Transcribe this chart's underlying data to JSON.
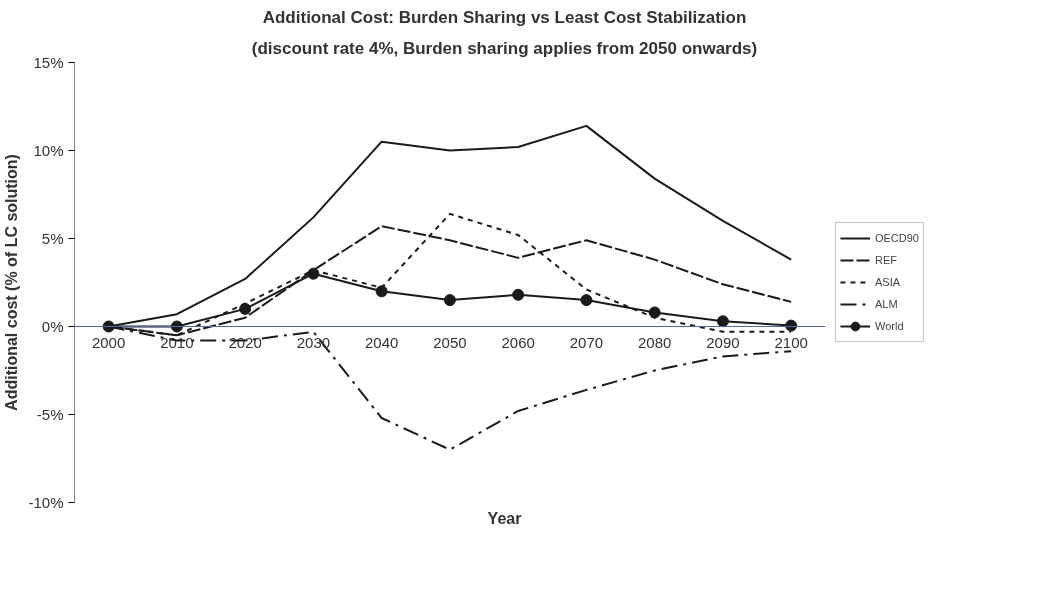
{
  "chart_data": {
    "type": "line",
    "title": "Additional Cost: Burden Sharing vs Least Cost Stabilization",
    "subtitle": "(discount rate 4%, Burden sharing applies from 2050 onwards)",
    "xlabel": "Year",
    "ylabel": "Additional cost (% of LC solution)",
    "categories": [
      "2000",
      "2010",
      "2020",
      "2030",
      "2040",
      "2050",
      "2060",
      "2070",
      "2080",
      "2090",
      "2100"
    ],
    "ylim": [
      -10,
      15
    ],
    "yticks": [
      {
        "value": -10,
        "label": "-10%"
      },
      {
        "value": -5,
        "label": "-5%"
      },
      {
        "value": 0,
        "label": "0%"
      },
      {
        "value": 5,
        "label": "5%"
      },
      {
        "value": 10,
        "label": "10%"
      },
      {
        "value": 15,
        "label": "15%"
      }
    ],
    "grid": false,
    "legend": "right",
    "series": [
      {
        "name": "OECD90",
        "color": "#1a1a1a",
        "line_style": "solid",
        "marker": "none",
        "values": [
          0,
          0.7,
          2.7,
          6.2,
          10.5,
          10.0,
          10.2,
          11.4,
          8.4,
          6.0,
          3.8
        ]
      },
      {
        "name": "REF",
        "color": "#1a1a1a",
        "line_style": "dashed",
        "marker": "none",
        "values": [
          0,
          -0.5,
          0.5,
          3.2,
          5.7,
          4.9,
          3.9,
          4.9,
          3.8,
          2.4,
          1.4
        ]
      },
      {
        "name": "ASIA",
        "color": "#1a1a1a",
        "line_style": "dotted",
        "marker": "none",
        "values": [
          0,
          -0.5,
          1.3,
          3.2,
          2.2,
          6.4,
          5.2,
          2.1,
          0.5,
          -0.3,
          -0.3
        ]
      },
      {
        "name": "ALM",
        "color": "#1a1a1a",
        "line_style": "dashdot",
        "marker": "none",
        "values": [
          0,
          -0.8,
          -0.8,
          -0.3,
          -5.2,
          -7.0,
          -4.8,
          -3.6,
          -2.5,
          -1.7,
          -1.4
        ]
      },
      {
        "name": "World",
        "color": "#1a1a1a",
        "line_style": "solid",
        "marker": "circle",
        "values": [
          0,
          0,
          1.0,
          3.0,
          2.0,
          1.5,
          1.8,
          1.5,
          0.8,
          0.3,
          0.05
        ]
      }
    ]
  }
}
